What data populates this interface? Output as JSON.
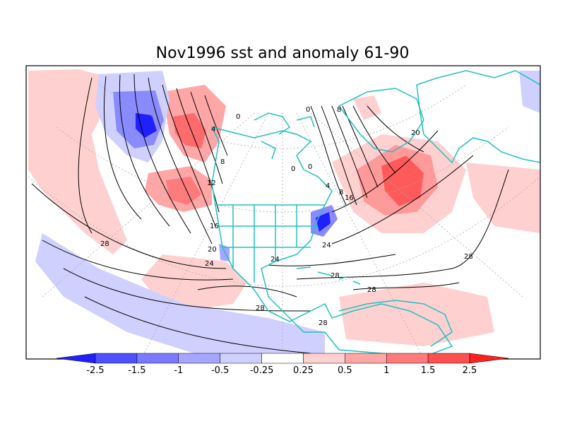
{
  "title": "Nov1996 sst and anomaly 61-90",
  "colors": {
    "coast": "#20c0c0",
    "contour": "#000000",
    "grid": "#aaaaaa",
    "neg_strong": "#1a1aff",
    "pos_strong": "#ff1a1a"
  },
  "colorbar": {
    "ticks": [
      "-2.5",
      "-1.5",
      "-1",
      "-0.5",
      "-0.25",
      "0.25",
      "0.5",
      "1",
      "1.5",
      "2.5"
    ],
    "colors": [
      "#2020ff",
      "#5050ff",
      "#7a7aff",
      "#a6a6ff",
      "#d0d0ff",
      "#ffffff",
      "#ffd0d0",
      "#ffa6a6",
      "#ff7a7a",
      "#ff5050",
      "#ff2020"
    ]
  },
  "contour_labels": [
    "0",
    "0",
    "0",
    "4",
    "8",
    "8",
    "12",
    "16",
    "20",
    "24",
    "28",
    "0",
    "8",
    "4",
    "16",
    "20",
    "24",
    "24",
    "28",
    "28",
    "28",
    "28",
    "28"
  ]
}
